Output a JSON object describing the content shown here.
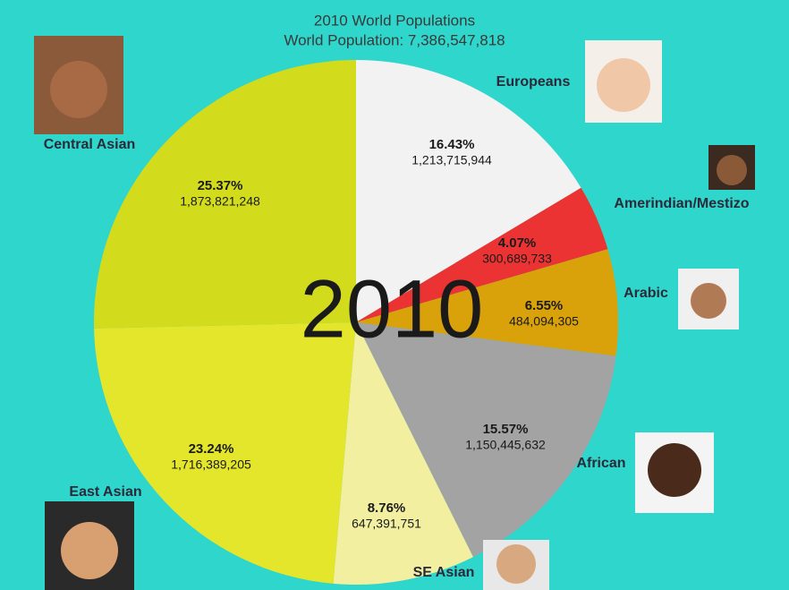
{
  "chart_data": {
    "type": "pie",
    "title": "2010 World Populations",
    "subtitle": "World Population: 7,386,547,818",
    "center_label": "2010",
    "categories": [
      "Europeans",
      "Amerindian/Mestizo",
      "Arabic",
      "African",
      "SE Asian",
      "East Asian",
      "Central Asian"
    ],
    "values": [
      16.43,
      4.07,
      6.55,
      15.57,
      8.76,
      23.24,
      25.37
    ],
    "value_labels": [
      "16.43%",
      "4.07%",
      "6.55%",
      "15.57%",
      "8.76%",
      "23.24%",
      "25.37%"
    ],
    "populations": [
      {
        "value": 1213715944,
        "label": "1,213,715,944"
      },
      {
        "value": 300689733,
        "label": "300,689,733"
      },
      {
        "value": 484094305,
        "label": "484,094,305"
      },
      {
        "value": 1150445632,
        "label": "1,150,445,632"
      },
      {
        "value": 647391751,
        "label": "647,391,751"
      },
      {
        "value": 1716389205,
        "label": "1,716,389,205"
      },
      {
        "value": 1873821248,
        "label": "1,873,821,248"
      }
    ],
    "colors": [
      "#f2f2f2",
      "#ec3333",
      "#d9a20a",
      "#a3a3a3",
      "#f2f0a0",
      "#e4e62c",
      "#d2dc1c"
    ]
  }
}
